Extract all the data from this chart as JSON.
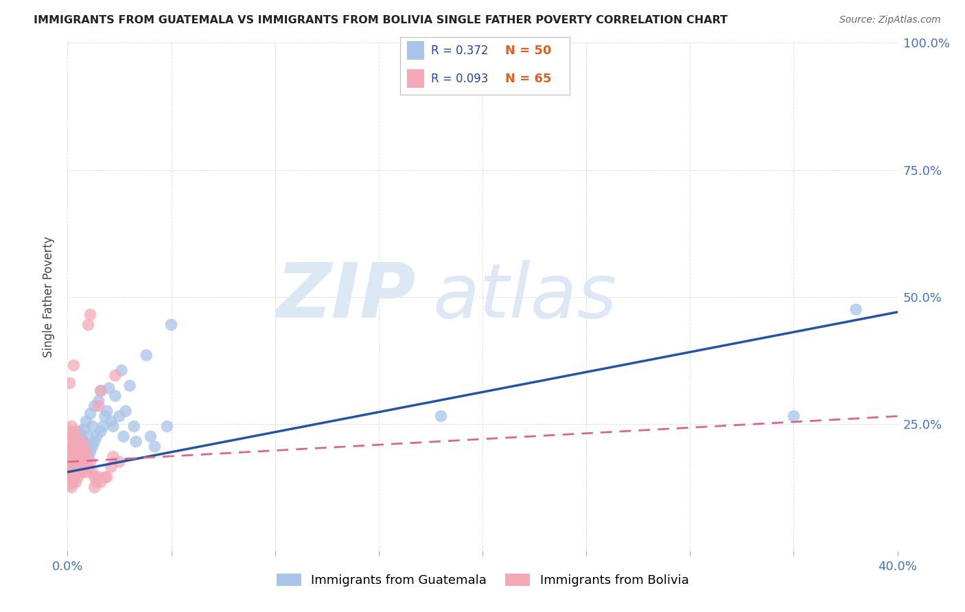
{
  "title": "IMMIGRANTS FROM GUATEMALA VS IMMIGRANTS FROM BOLIVIA SINGLE FATHER POVERTY CORRELATION CHART",
  "source": "Source: ZipAtlas.com",
  "ylabel": "Single Father Poverty",
  "legend_blue_r": "R = 0.372",
  "legend_blue_n": "N = 50",
  "legend_pink_r": "R = 0.093",
  "legend_pink_n": "N = 65",
  "blue_color": "#a8c4e8",
  "pink_color": "#f4a8b8",
  "blue_line_color": "#2255aa",
  "pink_line_color": "#dd6688",
  "watermark_zip": "ZIP",
  "watermark_atlas": "atlas",
  "watermark_color": "#dde8f5",
  "label_blue": "Immigrants from Guatemala",
  "label_pink": "Immigrants from Bolivia",
  "blue_points": [
    [
      0.001,
      0.165
    ],
    [
      0.002,
      0.19
    ],
    [
      0.003,
      0.175
    ],
    [
      0.003,
      0.21
    ],
    [
      0.004,
      0.195
    ],
    [
      0.004,
      0.225
    ],
    [
      0.005,
      0.17
    ],
    [
      0.005,
      0.215
    ],
    [
      0.006,
      0.2
    ],
    [
      0.006,
      0.235
    ],
    [
      0.007,
      0.185
    ],
    [
      0.007,
      0.22
    ],
    [
      0.008,
      0.195
    ],
    [
      0.008,
      0.24
    ],
    [
      0.009,
      0.21
    ],
    [
      0.009,
      0.255
    ],
    [
      0.01,
      0.185
    ],
    [
      0.01,
      0.225
    ],
    [
      0.011,
      0.195
    ],
    [
      0.011,
      0.27
    ],
    [
      0.012,
      0.205
    ],
    [
      0.012,
      0.245
    ],
    [
      0.013,
      0.215
    ],
    [
      0.013,
      0.285
    ],
    [
      0.014,
      0.225
    ],
    [
      0.015,
      0.295
    ],
    [
      0.016,
      0.235
    ],
    [
      0.016,
      0.315
    ],
    [
      0.017,
      0.245
    ],
    [
      0.018,
      0.265
    ],
    [
      0.019,
      0.275
    ],
    [
      0.02,
      0.32
    ],
    [
      0.021,
      0.255
    ],
    [
      0.022,
      0.245
    ],
    [
      0.023,
      0.305
    ],
    [
      0.025,
      0.265
    ],
    [
      0.026,
      0.355
    ],
    [
      0.027,
      0.225
    ],
    [
      0.028,
      0.275
    ],
    [
      0.03,
      0.325
    ],
    [
      0.032,
      0.245
    ],
    [
      0.033,
      0.215
    ],
    [
      0.038,
      0.385
    ],
    [
      0.04,
      0.225
    ],
    [
      0.042,
      0.205
    ],
    [
      0.048,
      0.245
    ],
    [
      0.05,
      0.445
    ],
    [
      0.18,
      0.265
    ],
    [
      0.35,
      0.265
    ],
    [
      0.38,
      0.475
    ]
  ],
  "pink_points": [
    [
      0.0005,
      0.155
    ],
    [
      0.001,
      0.13
    ],
    [
      0.001,
      0.155
    ],
    [
      0.001,
      0.175
    ],
    [
      0.001,
      0.195
    ],
    [
      0.001,
      0.215
    ],
    [
      0.001,
      0.235
    ],
    [
      0.001,
      0.33
    ],
    [
      0.0015,
      0.14
    ],
    [
      0.0015,
      0.165
    ],
    [
      0.002,
      0.125
    ],
    [
      0.002,
      0.145
    ],
    [
      0.002,
      0.165
    ],
    [
      0.002,
      0.185
    ],
    [
      0.002,
      0.205
    ],
    [
      0.002,
      0.225
    ],
    [
      0.002,
      0.245
    ],
    [
      0.0025,
      0.135
    ],
    [
      0.003,
      0.145
    ],
    [
      0.003,
      0.165
    ],
    [
      0.003,
      0.185
    ],
    [
      0.003,
      0.205
    ],
    [
      0.003,
      0.225
    ],
    [
      0.003,
      0.365
    ],
    [
      0.004,
      0.135
    ],
    [
      0.004,
      0.155
    ],
    [
      0.004,
      0.175
    ],
    [
      0.004,
      0.195
    ],
    [
      0.004,
      0.215
    ],
    [
      0.004,
      0.235
    ],
    [
      0.005,
      0.145
    ],
    [
      0.005,
      0.165
    ],
    [
      0.005,
      0.185
    ],
    [
      0.005,
      0.205
    ],
    [
      0.006,
      0.155
    ],
    [
      0.006,
      0.175
    ],
    [
      0.006,
      0.195
    ],
    [
      0.007,
      0.155
    ],
    [
      0.007,
      0.175
    ],
    [
      0.007,
      0.195
    ],
    [
      0.007,
      0.215
    ],
    [
      0.008,
      0.165
    ],
    [
      0.008,
      0.185
    ],
    [
      0.008,
      0.205
    ],
    [
      0.009,
      0.155
    ],
    [
      0.009,
      0.175
    ],
    [
      0.009,
      0.195
    ],
    [
      0.01,
      0.165
    ],
    [
      0.01,
      0.445
    ],
    [
      0.011,
      0.175
    ],
    [
      0.011,
      0.465
    ],
    [
      0.012,
      0.155
    ],
    [
      0.013,
      0.125
    ],
    [
      0.013,
      0.145
    ],
    [
      0.014,
      0.135
    ],
    [
      0.015,
      0.145
    ],
    [
      0.015,
      0.285
    ],
    [
      0.016,
      0.135
    ],
    [
      0.016,
      0.315
    ],
    [
      0.018,
      0.145
    ],
    [
      0.019,
      0.145
    ],
    [
      0.021,
      0.165
    ],
    [
      0.022,
      0.185
    ],
    [
      0.025,
      0.175
    ],
    [
      0.023,
      0.345
    ]
  ],
  "xlim": [
    0.0,
    0.4
  ],
  "ylim": [
    0.0,
    1.0
  ],
  "yticks": [
    0.0,
    0.25,
    0.5,
    0.75,
    1.0
  ],
  "ytick_labels": [
    "",
    "25.0%",
    "50.0%",
    "75.0%",
    "100.0%"
  ],
  "xticks": [
    0.0,
    0.05,
    0.1,
    0.15,
    0.2,
    0.25,
    0.3,
    0.35,
    0.4
  ],
  "xtick_labels": [
    "0.0%",
    "",
    "",
    "",
    "",
    "",
    "",
    "",
    "40.0%"
  ],
  "blue_line": [
    [
      0.0,
      0.155
    ],
    [
      0.4,
      0.47
    ]
  ],
  "pink_line": [
    [
      0.0,
      0.175
    ],
    [
      0.4,
      0.265
    ]
  ],
  "background_color": "#ffffff",
  "grid_color": "#cccccc",
  "tick_color": "#4472c4",
  "title_color": "#222222",
  "source_color": "#666666"
}
